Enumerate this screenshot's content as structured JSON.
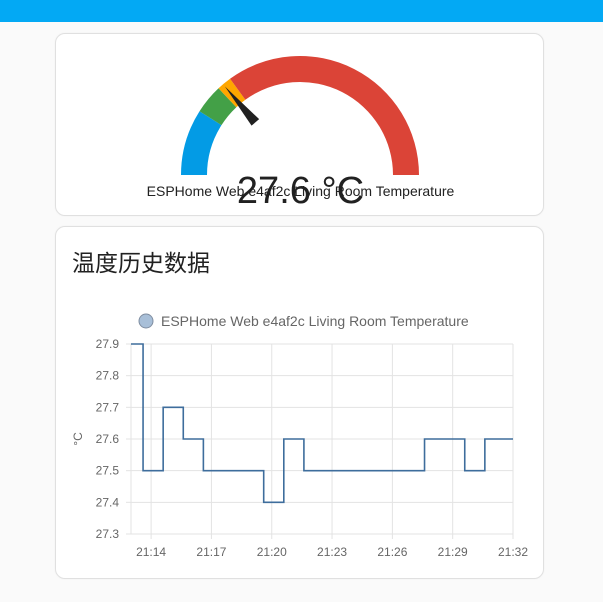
{
  "header": {
    "bar_color": "#03a9f4"
  },
  "gauge": {
    "value": 27.6,
    "value_text": "27.6 °C",
    "name": "ESPHome Web e4af2c Living Room Temperature",
    "min": 0,
    "max": 100,
    "segments": [
      {
        "from": 0,
        "to": 18,
        "color": "#039be5"
      },
      {
        "from": 18,
        "to": 26,
        "color": "#43a047"
      },
      {
        "from": 26,
        "to": 30,
        "color": "#ffa600"
      },
      {
        "from": 30,
        "to": 100,
        "color": "#db4437"
      }
    ],
    "needle_color": "#212121"
  },
  "history": {
    "title": "温度历史数据",
    "legend_label": "ESPHome Web e4af2c Living Room Temperature",
    "series_color": "#3e6d9c",
    "legend_fill": "#a8bfd8"
  },
  "chart_data": {
    "type": "line",
    "step": true,
    "ylabel": "°C",
    "xlabel": "",
    "ylim": [
      27.3,
      27.9
    ],
    "yticks": [
      "27.3",
      "27.4",
      "27.5",
      "27.6",
      "27.7",
      "27.8",
      "27.9"
    ],
    "xlim": [
      "21:13",
      "21:32"
    ],
    "xticks": [
      "21:14",
      "21:17",
      "21:20",
      "21:23",
      "21:26",
      "21:29",
      "21:32"
    ],
    "grid": true,
    "legend": "top-center",
    "series": [
      {
        "name": "ESPHome Web e4af2c Living Room Temperature",
        "x": [
          "21:13",
          "21:13.6",
          "21:14.6",
          "21:15.6",
          "21:16.6",
          "21:19.6",
          "21:20.6",
          "21:21.6",
          "21:27.6",
          "21:29.6",
          "21:30.6"
        ],
        "y": [
          27.9,
          27.5,
          27.7,
          27.6,
          27.5,
          27.4,
          27.6,
          27.5,
          27.6,
          27.5,
          27.6
        ],
        "end_x": "21:32"
      }
    ]
  }
}
